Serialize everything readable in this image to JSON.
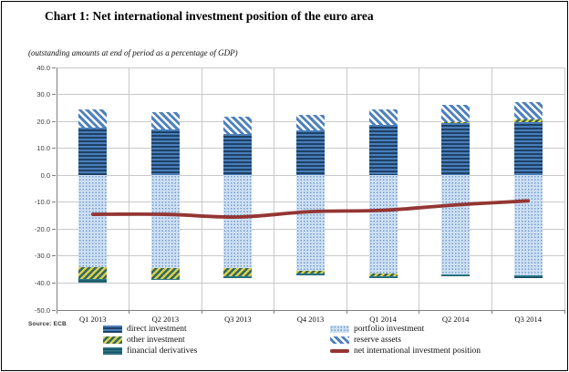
{
  "figure": {
    "title": "Chart 1: Net international investment position of the euro area",
    "subtitle": "(outstanding amounts at end of period as a percentage of GDP)",
    "source": "Source: ECB"
  },
  "chart_data": {
    "type": "bar",
    "subtype": "stacked-bars-with-line-overlay",
    "title": "Chart 1: Net international investment position of the euro area",
    "subtitle": "(outstanding amounts at end of period as a percentage of GDP)",
    "categories": [
      "Q1 2013",
      "Q2 2013",
      "Q3 2013",
      "Q4 2013",
      "Q1 2014",
      "Q2 2014",
      "Q3 2014"
    ],
    "series": [
      {
        "id": "direct_investment",
        "name": "direct investment",
        "values": [
          17.6,
          16.9,
          15.4,
          16.5,
          18.7,
          19.2,
          19.6
        ]
      },
      {
        "id": "other_investment",
        "name": "other investment",
        "values": [
          -4.5,
          -3.8,
          -2.8,
          -1.1,
          -1.3,
          0.4,
          1.2
        ]
      },
      {
        "id": "financial_derivatives",
        "name": "financial derivatives",
        "values": [
          -1.2,
          -0.6,
          -0.8,
          -0.7,
          -0.6,
          -0.8,
          -0.9
        ]
      },
      {
        "id": "portfolio_investment",
        "name": "portfolio investment",
        "values": [
          -34.0,
          -34.6,
          -34.6,
          -35.3,
          -36.3,
          -36.8,
          -37.1
        ]
      },
      {
        "id": "reserve_assets",
        "name": "reserve assets",
        "values": [
          6.8,
          6.5,
          6.4,
          5.8,
          5.8,
          6.4,
          6.5
        ]
      }
    ],
    "line_series": {
      "id": "net_iip",
      "name": "net international investment position",
      "values": [
        -14.5,
        -14.5,
        -15.5,
        -13.5,
        -13.0,
        -11.0,
        -9.5
      ],
      "color": "#943634"
    },
    "xlabel": "",
    "ylabel": "",
    "ylim": [
      -50,
      40
    ],
    "ytick_step": 10,
    "ytick_labels": [
      "40.0",
      "30.0",
      "20.0",
      "10.0",
      "0.0",
      "-10.0",
      "-20.0",
      "-30.0",
      "-40.0",
      "-50.0"
    ],
    "grid": "on",
    "legend_position": "bottom-two-columns",
    "stack_order_positive": [
      "direct_investment",
      "other_investment",
      "reserve_assets"
    ],
    "stack_order_negative": [
      "portfolio_investment",
      "other_investment",
      "financial_derivatives"
    ],
    "colors": {
      "direct_investment": "#1d4268",
      "direct_investment_base": "#4a7db8",
      "reserve_assets": "#4f81bd",
      "portfolio_investment": "#cfe0f2",
      "portfolio_investment_dot": "#6f9bd2",
      "other_investment_stripe": "#d9d050",
      "other_investment_base": "#34685c",
      "financial_derivatives": "#2e7b8c",
      "net_iip_line": "#943634",
      "gridline": "#c9c9c9",
      "axis": "#7f7f7f"
    }
  },
  "legend": {
    "columns": [
      [
        "direct_investment",
        "other_investment",
        "financial_derivatives"
      ],
      [
        "portfolio_investment",
        "reserve_assets",
        "net_iip"
      ]
    ]
  }
}
